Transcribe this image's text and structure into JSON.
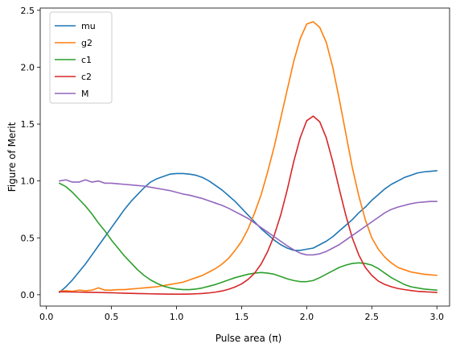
{
  "chart_data": {
    "type": "line",
    "xlabel": "Pulse area (π)",
    "ylabel": "Figure of Merit",
    "xlim": [
      -0.0475,
      3.0975
    ],
    "ylim": [
      -0.1,
      2.52
    ],
    "xticks": [
      0.0,
      0.5,
      1.0,
      1.5,
      2.0,
      2.5,
      3.0
    ],
    "xtick_labels": [
      "0.0",
      "0.5",
      "1.0",
      "1.5",
      "2.0",
      "2.5",
      "3.0"
    ],
    "yticks": [
      0.0,
      0.5,
      1.0,
      1.5,
      2.0,
      2.5
    ],
    "ytick_labels": [
      "0.0",
      "0.5",
      "1.0",
      "1.5",
      "2.0",
      "2.5"
    ],
    "grid": false,
    "legend_position": "top-left",
    "x": [
      0.1,
      0.15,
      0.2,
      0.25,
      0.3,
      0.35,
      0.4,
      0.45,
      0.5,
      0.55,
      0.6,
      0.65,
      0.7,
      0.75,
      0.8,
      0.85,
      0.9,
      0.95,
      1.0,
      1.05,
      1.1,
      1.15,
      1.2,
      1.25,
      1.3,
      1.35,
      1.4,
      1.45,
      1.5,
      1.55,
      1.6,
      1.65,
      1.7,
      1.75,
      1.8,
      1.85,
      1.9,
      1.95,
      2.0,
      2.05,
      2.1,
      2.15,
      2.2,
      2.25,
      2.3,
      2.35,
      2.4,
      2.45,
      2.5,
      2.55,
      2.6,
      2.65,
      2.7,
      2.75,
      2.8,
      2.85,
      2.9,
      2.95,
      3.0
    ],
    "series": [
      {
        "name": "mu",
        "color": "#1f77b4",
        "values": [
          0.02,
          0.07,
          0.13,
          0.2,
          0.27,
          0.35,
          0.43,
          0.51,
          0.59,
          0.67,
          0.75,
          0.82,
          0.88,
          0.94,
          0.99,
          1.02,
          1.04,
          1.06,
          1.065,
          1.065,
          1.06,
          1.05,
          1.03,
          1.0,
          0.96,
          0.92,
          0.87,
          0.82,
          0.76,
          0.7,
          0.64,
          0.58,
          0.53,
          0.48,
          0.44,
          0.41,
          0.39,
          0.39,
          0.4,
          0.41,
          0.44,
          0.47,
          0.51,
          0.56,
          0.61,
          0.66,
          0.72,
          0.77,
          0.83,
          0.88,
          0.93,
          0.97,
          1.0,
          1.03,
          1.05,
          1.07,
          1.08,
          1.085,
          1.09
        ]
      },
      {
        "name": "g2",
        "color": "#ff7f0e",
        "values": [
          0.03,
          0.035,
          0.03,
          0.04,
          0.035,
          0.04,
          0.06,
          0.04,
          0.04,
          0.045,
          0.045,
          0.05,
          0.055,
          0.06,
          0.065,
          0.07,
          0.08,
          0.09,
          0.1,
          0.11,
          0.13,
          0.15,
          0.17,
          0.2,
          0.23,
          0.27,
          0.32,
          0.39,
          0.47,
          0.58,
          0.72,
          0.88,
          1.08,
          1.3,
          1.55,
          1.8,
          2.05,
          2.25,
          2.38,
          2.4,
          2.35,
          2.22,
          2.0,
          1.72,
          1.42,
          1.12,
          0.87,
          0.66,
          0.5,
          0.4,
          0.33,
          0.28,
          0.24,
          0.22,
          0.2,
          0.19,
          0.18,
          0.175,
          0.17
        ]
      },
      {
        "name": "c1",
        "color": "#2ca02c",
        "values": [
          0.98,
          0.95,
          0.9,
          0.84,
          0.78,
          0.71,
          0.63,
          0.56,
          0.48,
          0.41,
          0.34,
          0.28,
          0.22,
          0.17,
          0.13,
          0.1,
          0.075,
          0.06,
          0.05,
          0.045,
          0.045,
          0.05,
          0.06,
          0.075,
          0.09,
          0.11,
          0.13,
          0.15,
          0.165,
          0.18,
          0.19,
          0.195,
          0.19,
          0.18,
          0.16,
          0.14,
          0.125,
          0.115,
          0.115,
          0.125,
          0.15,
          0.18,
          0.21,
          0.24,
          0.26,
          0.275,
          0.28,
          0.275,
          0.26,
          0.23,
          0.19,
          0.15,
          0.12,
          0.09,
          0.07,
          0.06,
          0.05,
          0.045,
          0.04
        ]
      },
      {
        "name": "c2",
        "color": "#d62728",
        "values": [
          0.025,
          0.025,
          0.024,
          0.023,
          0.022,
          0.021,
          0.02,
          0.018,
          0.017,
          0.015,
          0.013,
          0.012,
          0.01,
          0.009,
          0.008,
          0.007,
          0.006,
          0.005,
          0.005,
          0.005,
          0.006,
          0.008,
          0.011,
          0.016,
          0.023,
          0.033,
          0.048,
          0.068,
          0.095,
          0.135,
          0.19,
          0.27,
          0.38,
          0.52,
          0.7,
          0.92,
          1.17,
          1.38,
          1.53,
          1.57,
          1.52,
          1.38,
          1.17,
          0.93,
          0.7,
          0.5,
          0.35,
          0.24,
          0.17,
          0.12,
          0.09,
          0.07,
          0.055,
          0.045,
          0.037,
          0.03,
          0.026,
          0.023,
          0.02
        ]
      },
      {
        "name": "M",
        "color": "#9467bd",
        "values": [
          1.0,
          1.01,
          0.99,
          0.99,
          1.01,
          0.99,
          1.0,
          0.98,
          0.98,
          0.975,
          0.97,
          0.965,
          0.96,
          0.955,
          0.945,
          0.935,
          0.925,
          0.915,
          0.9,
          0.885,
          0.875,
          0.86,
          0.845,
          0.825,
          0.805,
          0.785,
          0.76,
          0.73,
          0.7,
          0.67,
          0.63,
          0.59,
          0.55,
          0.51,
          0.47,
          0.43,
          0.395,
          0.365,
          0.35,
          0.35,
          0.36,
          0.38,
          0.41,
          0.44,
          0.48,
          0.52,
          0.56,
          0.6,
          0.64,
          0.68,
          0.72,
          0.75,
          0.77,
          0.785,
          0.8,
          0.81,
          0.815,
          0.82,
          0.82
        ]
      }
    ]
  }
}
